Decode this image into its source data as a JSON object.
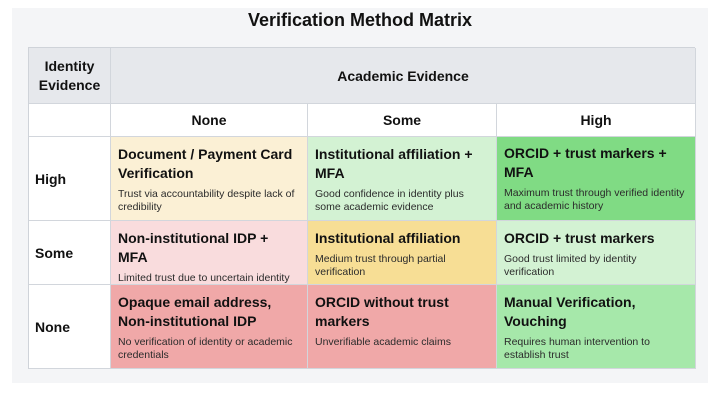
{
  "title": "Verification Method Matrix",
  "header": {
    "corner": "Identity Evidence",
    "academic_group": "Academic Evidence",
    "columns": [
      "None",
      "Some",
      "High"
    ]
  },
  "rows": [
    {
      "label": "High",
      "cells": [
        {
          "title": "Document / Payment Card Verification",
          "desc": "Trust via accountability despite lack of credibility",
          "color": "#fbf0d5"
        },
        {
          "title": "Institutional affiliation + MFA",
          "desc": "Good confidence in identity plus some academic evidence",
          "color": "#d3f2d3"
        },
        {
          "title": "ORCID + trust markers + MFA",
          "desc": "Maximum trust through verified identity and academic history",
          "color": "#80db84"
        }
      ]
    },
    {
      "label": "Some",
      "cells": [
        {
          "title": "Non-institutional IDP + MFA",
          "desc": "Limited trust due to uncertain identity",
          "color": "#f9dcdd"
        },
        {
          "title": "Institutional affiliation",
          "desc": "Medium trust through partial verification",
          "color": "#f7de95"
        },
        {
          "title": "ORCID + trust markers",
          "desc": "Good trust limited by identity verification",
          "color": "#d3f2d3"
        }
      ]
    },
    {
      "label": "None",
      "cells": [
        {
          "title": "Opaque email address, Non-institutional IDP",
          "desc": "No verification of identity or academic credentials",
          "color": "#f0a8a8"
        },
        {
          "title": "ORCID without trust markers",
          "desc": "Unverifiable academic claims",
          "color": "#f0a8a8"
        },
        {
          "title": "Manual Verification, Vouching",
          "desc": "Requires human intervention to establish trust",
          "color": "#a6e8aa"
        }
      ]
    }
  ]
}
